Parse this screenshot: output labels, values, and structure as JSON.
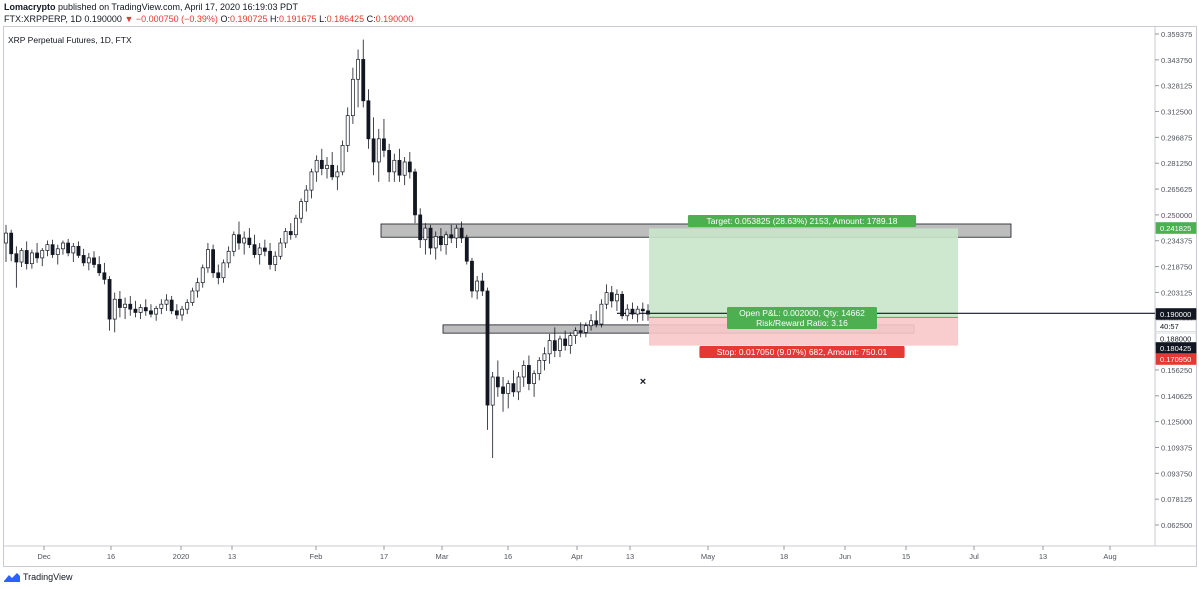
{
  "header": {
    "author": "Lomacrypto",
    "published": "published on TradingView.com, April 17, 2020 16:19:03 PDT",
    "symbol": "FTX:XRPPERP, 1D",
    "last": "0.190000",
    "change": "▼ −0.000750 (−0.39%)",
    "o_label": "O:",
    "o_value": "0.190725",
    "h_label": "H:",
    "h_value": "0.191675",
    "l_label": "L:",
    "l_value": "0.186425",
    "c_label": "C:",
    "c_value": "0.190000"
  },
  "chart_title": "XRP Perpetual Futures, 1D, FTX",
  "footer": {
    "brand": "TradingView",
    "icon": "tradingview-logo-icon"
  },
  "colors": {
    "up": "#131722",
    "down": "#131722",
    "axis_text": "#50535e",
    "target_fill": "#c8e6c9",
    "stop_fill": "#f8c8c8",
    "target_label": "#4caf50",
    "stop_label": "#e53935",
    "zone_fill": "#bdbdbd",
    "grid": "#e6e6e6"
  },
  "chart_data": {
    "type": "candlestick",
    "title": "XRP Perpetual Futures, 1D, FTX",
    "y_ticks": [
      "0.359375",
      "0.343750",
      "0.328125",
      "0.312500",
      "0.296875",
      "0.281250",
      "0.265625",
      "0.250000",
      "0.234375",
      "0.218750",
      "0.203125",
      "0.187500",
      "0.171875",
      "0.156250",
      "0.140625",
      "0.125000",
      "0.109375",
      "0.093750",
      "0.078125",
      "0.062500"
    ],
    "x_labels": [
      "Dec",
      "16",
      "2020",
      "13",
      "Feb",
      "17",
      "Mar",
      "16",
      "Apr",
      "13",
      "May",
      "18",
      "Jun",
      "15",
      "Jul",
      "13",
      "Aug"
    ],
    "price_badges": [
      {
        "text": "0.241825",
        "bg": "#4caf50",
        "fg": "#ffffff"
      },
      {
        "text": "0.190000",
        "bg": "#131722",
        "fg": "#ffffff"
      },
      {
        "text": "40:57",
        "bg": "#ffffff",
        "fg": "#131722"
      },
      {
        "text": "0.188000",
        "bg": "#ffffff",
        "fg": "#131722"
      },
      {
        "text": "0.180425",
        "bg": "#131722",
        "fg": "#ffffff"
      },
      {
        "text": "0.170950",
        "bg": "#e53935",
        "fg": "#ffffff"
      }
    ],
    "position": {
      "entry": 0.188,
      "target": 0.241825,
      "stop": 0.17095,
      "target_text": "Target: 0.053825 (28.63%) 2153, Amount: 1789.18",
      "pnl_text": "Open P&L: 0.002000, Qty: 14662",
      "rr_text": "Risk/Reward Ratio: 3.16",
      "stop_text": "Stop: 0.017050 (9.07%) 682, Amount: 750.01"
    },
    "zones": [
      {
        "top": 0.2445,
        "bottom": 0.2365
      },
      {
        "top": 0.1835,
        "bottom": 0.1785
      }
    ],
    "horizontal_line": 0.1905,
    "candles": [
      [
        0.233,
        0.244,
        0.2215,
        0.239
      ],
      [
        0.239,
        0.241,
        0.222,
        0.2265
      ],
      [
        0.2265,
        0.231,
        0.206,
        0.2215
      ],
      [
        0.2215,
        0.23,
        0.2185,
        0.2285
      ],
      [
        0.2285,
        0.234,
        0.217,
        0.2205
      ],
      [
        0.2205,
        0.229,
        0.2175,
        0.227
      ],
      [
        0.227,
        0.233,
        0.221,
        0.224
      ],
      [
        0.224,
        0.23,
        0.219,
        0.2285
      ],
      [
        0.2285,
        0.2345,
        0.225,
        0.232
      ],
      [
        0.232,
        0.235,
        0.224,
        0.226
      ],
      [
        0.226,
        0.232,
        0.22,
        0.2295
      ],
      [
        0.2295,
        0.2345,
        0.226,
        0.233
      ],
      [
        0.233,
        0.2355,
        0.225,
        0.227
      ],
      [
        0.227,
        0.233,
        0.2215,
        0.231
      ],
      [
        0.231,
        0.234,
        0.224,
        0.2255
      ],
      [
        0.2255,
        0.2295,
        0.219,
        0.221
      ],
      [
        0.221,
        0.227,
        0.2165,
        0.224
      ],
      [
        0.224,
        0.228,
        0.218,
        0.22
      ],
      [
        0.22,
        0.225,
        0.213,
        0.215
      ],
      [
        0.215,
        0.221,
        0.208,
        0.211
      ],
      [
        0.211,
        0.213,
        0.18,
        0.187
      ],
      [
        0.187,
        0.203,
        0.179,
        0.199
      ],
      [
        0.199,
        0.204,
        0.188,
        0.194
      ],
      [
        0.194,
        0.2,
        0.187,
        0.196
      ],
      [
        0.196,
        0.201,
        0.189,
        0.193
      ],
      [
        0.193,
        0.198,
        0.188,
        0.191
      ],
      [
        0.191,
        0.196,
        0.187,
        0.194
      ],
      [
        0.194,
        0.199,
        0.189,
        0.192
      ],
      [
        0.192,
        0.196,
        0.188,
        0.19
      ],
      [
        0.19,
        0.195,
        0.186,
        0.1935
      ],
      [
        0.1935,
        0.199,
        0.19,
        0.196
      ],
      [
        0.196,
        0.202,
        0.192,
        0.1985
      ],
      [
        0.1985,
        0.201,
        0.19,
        0.192
      ],
      [
        0.192,
        0.196,
        0.187,
        0.1895
      ],
      [
        0.1895,
        0.195,
        0.186,
        0.193
      ],
      [
        0.193,
        0.199,
        0.19,
        0.197
      ],
      [
        0.197,
        0.206,
        0.195,
        0.204
      ],
      [
        0.204,
        0.212,
        0.2,
        0.209
      ],
      [
        0.209,
        0.22,
        0.206,
        0.218
      ],
      [
        0.218,
        0.233,
        0.215,
        0.229
      ],
      [
        0.229,
        0.232,
        0.212,
        0.215
      ],
      [
        0.215,
        0.22,
        0.208,
        0.212
      ],
      [
        0.212,
        0.223,
        0.209,
        0.221
      ],
      [
        0.221,
        0.231,
        0.218,
        0.228
      ],
      [
        0.228,
        0.24,
        0.225,
        0.238
      ],
      [
        0.238,
        0.246,
        0.229,
        0.233
      ],
      [
        0.233,
        0.24,
        0.226,
        0.236
      ],
      [
        0.236,
        0.242,
        0.23,
        0.232
      ],
      [
        0.232,
        0.238,
        0.224,
        0.226
      ],
      [
        0.226,
        0.233,
        0.22,
        0.23
      ],
      [
        0.23,
        0.235,
        0.225,
        0.228
      ],
      [
        0.228,
        0.233,
        0.217,
        0.22
      ],
      [
        0.22,
        0.228,
        0.216,
        0.225
      ],
      [
        0.225,
        0.236,
        0.223,
        0.233
      ],
      [
        0.233,
        0.242,
        0.23,
        0.24
      ],
      [
        0.24,
        0.245,
        0.235,
        0.238
      ],
      [
        0.238,
        0.25,
        0.236,
        0.248
      ],
      [
        0.248,
        0.26,
        0.245,
        0.258
      ],
      [
        0.258,
        0.268,
        0.252,
        0.265
      ],
      [
        0.265,
        0.278,
        0.26,
        0.276
      ],
      [
        0.276,
        0.286,
        0.27,
        0.283
      ],
      [
        0.283,
        0.29,
        0.274,
        0.278
      ],
      [
        0.278,
        0.285,
        0.272,
        0.28
      ],
      [
        0.28,
        0.288,
        0.271,
        0.273
      ],
      [
        0.273,
        0.28,
        0.265,
        0.276
      ],
      [
        0.276,
        0.295,
        0.274,
        0.292
      ],
      [
        0.292,
        0.315,
        0.288,
        0.31
      ],
      [
        0.31,
        0.339,
        0.305,
        0.332
      ],
      [
        0.332,
        0.35,
        0.315,
        0.344
      ],
      [
        0.344,
        0.356,
        0.315,
        0.319
      ],
      [
        0.319,
        0.326,
        0.29,
        0.296
      ],
      [
        0.296,
        0.309,
        0.274,
        0.282
      ],
      [
        0.282,
        0.302,
        0.27,
        0.296
      ],
      [
        0.296,
        0.308,
        0.285,
        0.289
      ],
      [
        0.289,
        0.293,
        0.27,
        0.276
      ],
      [
        0.276,
        0.287,
        0.27,
        0.283
      ],
      [
        0.283,
        0.29,
        0.27,
        0.274
      ],
      [
        0.274,
        0.285,
        0.268,
        0.282
      ],
      [
        0.282,
        0.288,
        0.272,
        0.276
      ],
      [
        0.276,
        0.278,
        0.245,
        0.25
      ],
      [
        0.25,
        0.254,
        0.23,
        0.235
      ],
      [
        0.235,
        0.245,
        0.226,
        0.242
      ],
      [
        0.242,
        0.244,
        0.226,
        0.23
      ],
      [
        0.23,
        0.24,
        0.223,
        0.237
      ],
      [
        0.237,
        0.242,
        0.228,
        0.232
      ],
      [
        0.232,
        0.24,
        0.226,
        0.238
      ],
      [
        0.238,
        0.244,
        0.233,
        0.236
      ],
      [
        0.236,
        0.244,
        0.23,
        0.242
      ],
      [
        0.242,
        0.246,
        0.233,
        0.236
      ],
      [
        0.236,
        0.238,
        0.22,
        0.222
      ],
      [
        0.222,
        0.224,
        0.2,
        0.204
      ],
      [
        0.204,
        0.213,
        0.199,
        0.21
      ],
      [
        0.21,
        0.215,
        0.201,
        0.204
      ],
      [
        0.204,
        0.206,
        0.12,
        0.135
      ],
      [
        0.135,
        0.155,
        0.103,
        0.152
      ],
      [
        0.152,
        0.162,
        0.14,
        0.146
      ],
      [
        0.146,
        0.152,
        0.131,
        0.142
      ],
      [
        0.142,
        0.15,
        0.133,
        0.148
      ],
      [
        0.148,
        0.156,
        0.14,
        0.143
      ],
      [
        0.143,
        0.155,
        0.138,
        0.152
      ],
      [
        0.152,
        0.162,
        0.146,
        0.159
      ],
      [
        0.159,
        0.165,
        0.144,
        0.148
      ],
      [
        0.148,
        0.156,
        0.14,
        0.154
      ],
      [
        0.154,
        0.164,
        0.15,
        0.162
      ],
      [
        0.162,
        0.17,
        0.156,
        0.166
      ],
      [
        0.166,
        0.178,
        0.16,
        0.174
      ],
      [
        0.174,
        0.182,
        0.164,
        0.168
      ],
      [
        0.168,
        0.177,
        0.164,
        0.175
      ],
      [
        0.175,
        0.18,
        0.168,
        0.171
      ],
      [
        0.171,
        0.179,
        0.166,
        0.177
      ],
      [
        0.177,
        0.182,
        0.172,
        0.18
      ],
      [
        0.18,
        0.185,
        0.176,
        0.179
      ],
      [
        0.179,
        0.185,
        0.176,
        0.183
      ],
      [
        0.183,
        0.19,
        0.18,
        0.186
      ],
      [
        0.186,
        0.192,
        0.182,
        0.184
      ],
      [
        0.184,
        0.199,
        0.182,
        0.196
      ],
      [
        0.196,
        0.208,
        0.193,
        0.203
      ],
      [
        0.203,
        0.207,
        0.194,
        0.198
      ],
      [
        0.198,
        0.205,
        0.192,
        0.202
      ],
      [
        0.202,
        0.204,
        0.187,
        0.189
      ],
      [
        0.189,
        0.196,
        0.186,
        0.193
      ],
      [
        0.193,
        0.197,
        0.187,
        0.19
      ],
      [
        0.19,
        0.195,
        0.185,
        0.193
      ],
      [
        0.193,
        0.197,
        0.186,
        0.192
      ],
      [
        0.192,
        0.196,
        0.186,
        0.19
      ]
    ]
  }
}
